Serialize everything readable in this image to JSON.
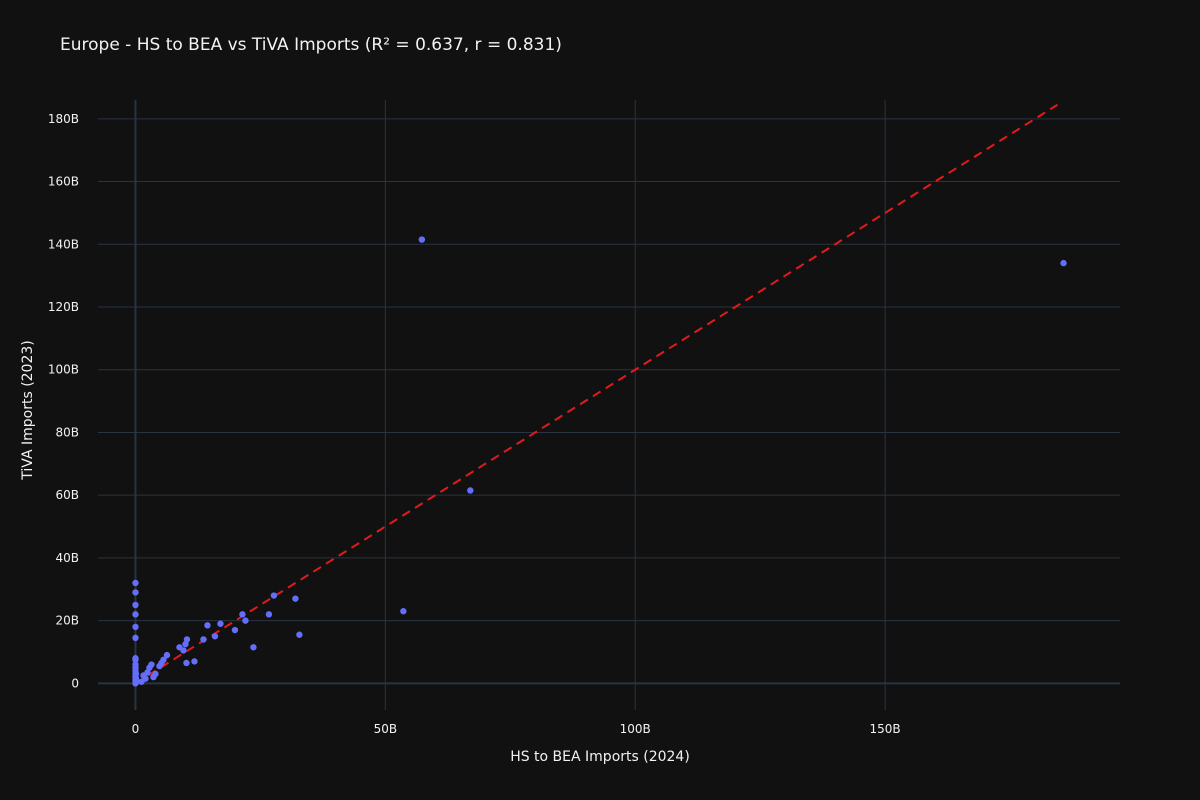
{
  "chart_data": {
    "type": "scatter",
    "title": "Europe - HS to BEA vs TiVA Imports (R² = 0.637, r = 0.831)",
    "xlabel": "HS to BEA Imports (2024)",
    "ylabel": "TiVA Imports (2023)",
    "xlim": [
      -7.5,
      197
    ],
    "ylim": [
      -8.5,
      186
    ],
    "x_ticks": [
      {
        "value": 0,
        "label": "0"
      },
      {
        "value": 50,
        "label": "50B"
      },
      {
        "value": 100,
        "label": "100B"
      },
      {
        "value": 150,
        "label": "150B"
      }
    ],
    "y_ticks": [
      {
        "value": 0,
        "label": "0"
      },
      {
        "value": 20,
        "label": "20B"
      },
      {
        "value": 40,
        "label": "40B"
      },
      {
        "value": 60,
        "label": "60B"
      },
      {
        "value": 80,
        "label": "80B"
      },
      {
        "value": 100,
        "label": "100B"
      },
      {
        "value": 120,
        "label": "120B"
      },
      {
        "value": 140,
        "label": "140B"
      },
      {
        "value": 160,
        "label": "160B"
      },
      {
        "value": 180,
        "label": "180B"
      }
    ],
    "units": "billions",
    "grid": true,
    "colors": {
      "points": "#636efa",
      "trend": "#e31a1c",
      "background": "#111111",
      "grid": "#283442",
      "text": "#f2f2f2"
    },
    "series": [
      {
        "type": "scatter",
        "x": [
          0,
          0,
          0,
          0,
          0,
          0,
          0,
          0,
          0,
          0,
          0,
          0,
          0,
          0,
          0,
          0.1,
          0.1,
          0.1,
          1.2,
          1.6,
          2.0,
          2.4,
          2.8,
          3.2,
          3.6,
          4.0,
          4.8,
          5.2,
          5.6,
          6.3,
          8.8,
          9.6,
          10.0,
          10.3,
          10.2,
          11.8,
          13.6,
          14.4,
          15.9,
          17.0,
          19.9,
          21.4,
          22.0,
          23.6,
          26.7,
          27.7,
          32.0,
          32.8,
          53.6,
          57.3,
          67.0,
          185.7
        ],
        "y": [
          0,
          1,
          2,
          3,
          4,
          5,
          6,
          7.5,
          8,
          14.5,
          18,
          22,
          25,
          29,
          32,
          0.5,
          1.5,
          3,
          0.5,
          2.5,
          1.5,
          3.5,
          5.0,
          6.0,
          2.0,
          3.0,
          5.5,
          6.5,
          7.5,
          9.0,
          11.5,
          10.5,
          12.5,
          14.0,
          6.5,
          7.0,
          14.0,
          18.5,
          15.0,
          19.0,
          17.0,
          22.0,
          20.0,
          11.5,
          22.0,
          28.0,
          27.0,
          15.5,
          23.0,
          141.5,
          61.5,
          134.0
        ]
      },
      {
        "type": "line",
        "dash": "dash",
        "x": [
          0,
          184.5
        ],
        "y": [
          0,
          184.5
        ]
      }
    ]
  }
}
